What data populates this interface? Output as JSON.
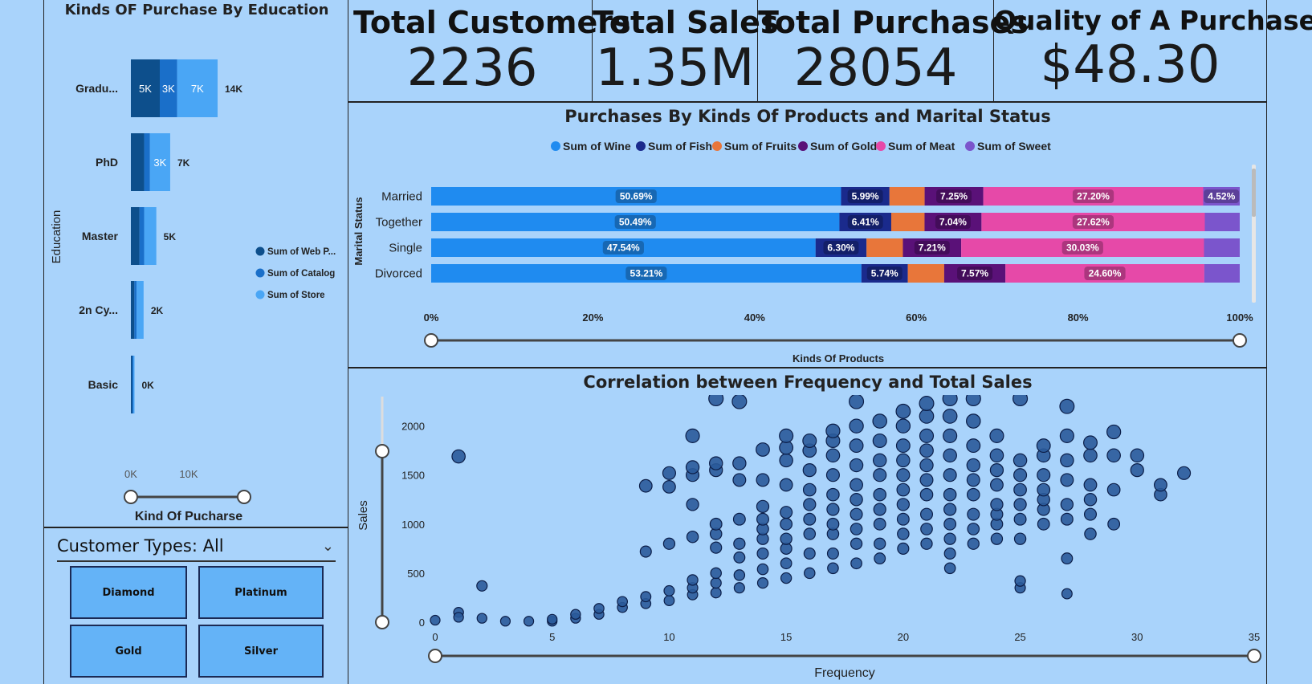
{
  "kpis": [
    {
      "title": "Total Customers",
      "value": "2236"
    },
    {
      "title": "Total Sales",
      "value": "1.35M"
    },
    {
      "title": "Total Purchases",
      "value": "28054"
    },
    {
      "title": "Quality of A Purchase",
      "value": "$48.30"
    }
  ],
  "education_chart": {
    "title": "Kinds OF Purchase By Education",
    "y_axis_title": "Education",
    "x_axis_title": "Kind Of Pucharse",
    "x_ticks": [
      "0K",
      "10K"
    ],
    "categories": [
      {
        "label": "Gradu...",
        "total_label": "14K",
        "segments": [
          {
            "value": 5,
            "label": "5K"
          },
          {
            "value": 3,
            "label": "3K"
          },
          {
            "value": 7,
            "label": "7K"
          }
        ]
      },
      {
        "label": "PhD",
        "total_label": "7K",
        "segments": [
          {
            "value": 2.3,
            "label": ""
          },
          {
            "value": 1,
            "label": ""
          },
          {
            "value": 3.5,
            "label": "3K"
          }
        ]
      },
      {
        "label": "Master",
        "total_label": "5K",
        "segments": [
          {
            "value": 1.5,
            "label": ""
          },
          {
            "value": 0.8,
            "label": ""
          },
          {
            "value": 2.1,
            "label": ""
          }
        ]
      },
      {
        "label": "2n Cy...",
        "total_label": "2K",
        "segments": [
          {
            "value": 0.6,
            "label": ""
          },
          {
            "value": 0.4,
            "label": ""
          },
          {
            "value": 1.2,
            "label": ""
          }
        ]
      },
      {
        "label": "Basic",
        "total_label": "0K",
        "segments": [
          {
            "value": 0.05,
            "label": ""
          },
          {
            "value": 0.03,
            "label": ""
          },
          {
            "value": 0.1,
            "label": ""
          }
        ]
      }
    ],
    "legend": [
      {
        "name": "Sum of Web P...",
        "color": "#0d4f8c"
      },
      {
        "name": "Sum of Catalog",
        "color": "#1a6fc9"
      },
      {
        "name": "Sum of Store",
        "color": "#4aa6f5"
      }
    ]
  },
  "customer_types": {
    "title": "Customer Types: All",
    "options": [
      "Diamond",
      "Platinum",
      "Gold",
      "Silver"
    ]
  },
  "marital_chart": {
    "title": "Purchases By Kinds Of Products and Marital Status",
    "y_axis_title": "Marital Status",
    "x_axis_title": "Kinds Of Products",
    "x_ticks": [
      "0%",
      "20%",
      "40%",
      "60%",
      "80%",
      "100%"
    ],
    "legend": [
      {
        "name": "Sum of Wine",
        "color": "#1f8bf0"
      },
      {
        "name": "Sum of Fish",
        "color": "#1a2a8c"
      },
      {
        "name": "Sum of Fruits",
        "color": "#e8763a"
      },
      {
        "name": "Sum of Gold",
        "color": "#5a1178"
      },
      {
        "name": "Sum of Meat",
        "color": "#e649a8"
      },
      {
        "name": "Sum of Sweet",
        "color": "#7b55cc"
      }
    ],
    "rows": [
      {
        "label": "Married",
        "values": [
          50.69,
          5.99,
          4.35,
          7.25,
          27.2,
          4.52
        ],
        "labels": [
          "50.69%",
          "5.99%",
          "",
          "7.25%",
          "27.20%",
          "4.52%"
        ]
      },
      {
        "label": "Together",
        "values": [
          50.49,
          6.41,
          4.12,
          7.04,
          27.62,
          4.32
        ],
        "labels": [
          "50.49%",
          "6.41%",
          "",
          "7.04%",
          "27.62%",
          ""
        ]
      },
      {
        "label": "Single",
        "values": [
          47.54,
          6.3,
          4.5,
          7.21,
          30.03,
          4.42
        ],
        "labels": [
          "47.54%",
          "6.30%",
          "",
          "7.21%",
          "30.03%",
          ""
        ]
      },
      {
        "label": "Divorced",
        "values": [
          53.21,
          5.74,
          4.5,
          7.57,
          24.6,
          4.38
        ],
        "labels": [
          "53.21%",
          "5.74%",
          "",
          "7.57%",
          "24.60%",
          ""
        ]
      }
    ]
  },
  "scatter_chart": {
    "title": "Correlation between Frequency and Total Sales",
    "x_axis_title": "Frequency",
    "y_axis_title": "Sales",
    "x_ticks": [
      "0",
      "5",
      "10",
      "15",
      "20",
      "25",
      "30",
      "35"
    ],
    "y_ticks": [
      "0",
      "500",
      "1000",
      "1500",
      "2000"
    ],
    "xlim": [
      0,
      35
    ],
    "ylim": [
      0,
      2300
    ],
    "point_color": "#2a5a9a",
    "points": [
      [
        0,
        20
      ],
      [
        1,
        1690
      ],
      [
        1,
        100
      ],
      [
        1,
        50
      ],
      [
        2,
        370
      ],
      [
        2,
        40
      ],
      [
        3,
        10
      ],
      [
        4,
        10
      ],
      [
        5,
        10
      ],
      [
        5,
        30
      ],
      [
        6,
        40
      ],
      [
        6,
        80
      ],
      [
        7,
        80
      ],
      [
        7,
        140
      ],
      [
        8,
        150
      ],
      [
        8,
        210
      ],
      [
        9,
        190
      ],
      [
        9,
        260
      ],
      [
        9,
        720
      ],
      [
        9,
        1390
      ],
      [
        10,
        220
      ],
      [
        10,
        320
      ],
      [
        10,
        800
      ],
      [
        10,
        1380
      ],
      [
        10,
        1520
      ],
      [
        11,
        280
      ],
      [
        11,
        350
      ],
      [
        11,
        430
      ],
      [
        11,
        870
      ],
      [
        11,
        1200
      ],
      [
        11,
        1500
      ],
      [
        11,
        1580
      ],
      [
        11,
        1900
      ],
      [
        12,
        300
      ],
      [
        12,
        400
      ],
      [
        12,
        500
      ],
      [
        12,
        760
      ],
      [
        12,
        900
      ],
      [
        12,
        1000
      ],
      [
        12,
        1550
      ],
      [
        12,
        1620
      ],
      [
        12,
        2280
      ],
      [
        13,
        350
      ],
      [
        13,
        480
      ],
      [
        13,
        660
      ],
      [
        13,
        800
      ],
      [
        13,
        1050
      ],
      [
        13,
        1450
      ],
      [
        13,
        1620
      ],
      [
        13,
        2250
      ],
      [
        14,
        400
      ],
      [
        14,
        540
      ],
      [
        14,
        700
      ],
      [
        14,
        850
      ],
      [
        14,
        950
      ],
      [
        14,
        1050
      ],
      [
        14,
        1180
      ],
      [
        14,
        1450
      ],
      [
        14,
        1760
      ],
      [
        15,
        450
      ],
      [
        15,
        600
      ],
      [
        15,
        750
      ],
      [
        15,
        850
      ],
      [
        15,
        1000
      ],
      [
        15,
        1120
      ],
      [
        15,
        1400
      ],
      [
        15,
        1650
      ],
      [
        15,
        1780
      ],
      [
        15,
        1900
      ],
      [
        16,
        500
      ],
      [
        16,
        700
      ],
      [
        16,
        900
      ],
      [
        16,
        1050
      ],
      [
        16,
        1200
      ],
      [
        16,
        1350
      ],
      [
        16,
        1550
      ],
      [
        16,
        1750
      ],
      [
        16,
        1850
      ],
      [
        17,
        550
      ],
      [
        17,
        700
      ],
      [
        17,
        900
      ],
      [
        17,
        1000
      ],
      [
        17,
        1150
      ],
      [
        17,
        1300
      ],
      [
        17,
        1500
      ],
      [
        17,
        1700
      ],
      [
        17,
        1850
      ],
      [
        17,
        1950
      ],
      [
        18,
        600
      ],
      [
        18,
        800
      ],
      [
        18,
        950
      ],
      [
        18,
        1100
      ],
      [
        18,
        1250
      ],
      [
        18,
        1400
      ],
      [
        18,
        1600
      ],
      [
        18,
        1800
      ],
      [
        18,
        2000
      ],
      [
        18,
        2250
      ],
      [
        19,
        650
      ],
      [
        19,
        800
      ],
      [
        19,
        1000
      ],
      [
        19,
        1150
      ],
      [
        19,
        1300
      ],
      [
        19,
        1500
      ],
      [
        19,
        1650
      ],
      [
        19,
        1850
      ],
      [
        19,
        2050
      ],
      [
        20,
        750
      ],
      [
        20,
        900
      ],
      [
        20,
        1050
      ],
      [
        20,
        1200
      ],
      [
        20,
        1350
      ],
      [
        20,
        1500
      ],
      [
        20,
        1650
      ],
      [
        20,
        1800
      ],
      [
        20,
        2000
      ],
      [
        20,
        2150
      ],
      [
        21,
        800
      ],
      [
        21,
        950
      ],
      [
        21,
        1100
      ],
      [
        21,
        1300
      ],
      [
        21,
        1450
      ],
      [
        21,
        1600
      ],
      [
        21,
        1750
      ],
      [
        21,
        1900
      ],
      [
        21,
        2100
      ],
      [
        21,
        2230
      ],
      [
        22,
        550
      ],
      [
        22,
        700
      ],
      [
        22,
        850
      ],
      [
        22,
        1000
      ],
      [
        22,
        1150
      ],
      [
        22,
        1300
      ],
      [
        22,
        1500
      ],
      [
        22,
        1700
      ],
      [
        22,
        1900
      ],
      [
        22,
        2100
      ],
      [
        22,
        2280
      ],
      [
        23,
        800
      ],
      [
        23,
        950
      ],
      [
        23,
        1100
      ],
      [
        23,
        1300
      ],
      [
        23,
        1450
      ],
      [
        23,
        1600
      ],
      [
        23,
        1800
      ],
      [
        23,
        2050
      ],
      [
        23,
        2280
      ],
      [
        24,
        850
      ],
      [
        24,
        1000
      ],
      [
        24,
        1100
      ],
      [
        24,
        1200
      ],
      [
        24,
        1400
      ],
      [
        24,
        1550
      ],
      [
        24,
        1700
      ],
      [
        24,
        1900
      ],
      [
        25,
        350
      ],
      [
        25,
        420
      ],
      [
        25,
        850
      ],
      [
        25,
        1050
      ],
      [
        25,
        1200
      ],
      [
        25,
        1350
      ],
      [
        25,
        1500
      ],
      [
        25,
        1650
      ],
      [
        25,
        2280
      ],
      [
        26,
        1000
      ],
      [
        26,
        1150
      ],
      [
        26,
        1250
      ],
      [
        26,
        1350
      ],
      [
        26,
        1500
      ],
      [
        26,
        1700
      ],
      [
        26,
        1800
      ],
      [
        27,
        290
      ],
      [
        27,
        650
      ],
      [
        27,
        1050
      ],
      [
        27,
        1200
      ],
      [
        27,
        1450
      ],
      [
        27,
        1650
      ],
      [
        27,
        1900
      ],
      [
        27,
        2200
      ],
      [
        28,
        900
      ],
      [
        28,
        1100
      ],
      [
        28,
        1250
      ],
      [
        28,
        1400
      ],
      [
        28,
        1700
      ],
      [
        28,
        1830
      ],
      [
        29,
        1000
      ],
      [
        29,
        1350
      ],
      [
        29,
        1700
      ],
      [
        29,
        1940
      ],
      [
        30,
        1550
      ],
      [
        30,
        1700
      ],
      [
        31,
        1300
      ],
      [
        31,
        1400
      ],
      [
        32,
        1520
      ]
    ]
  }
}
